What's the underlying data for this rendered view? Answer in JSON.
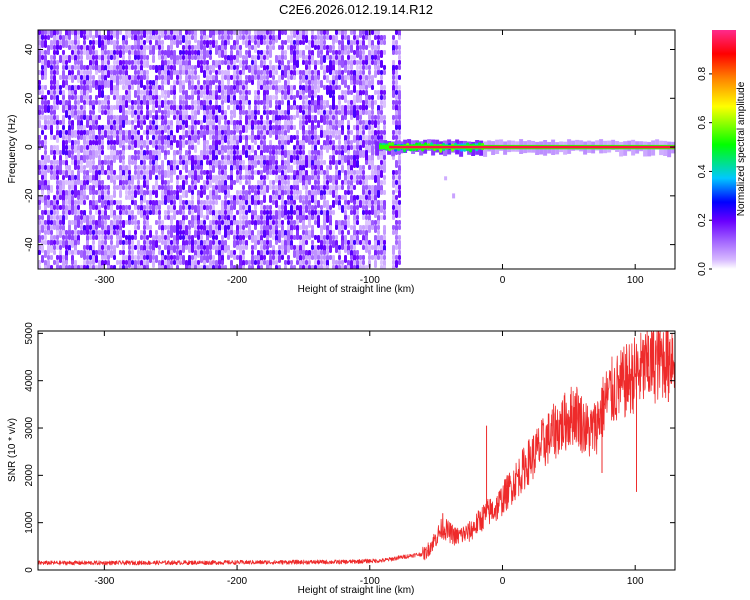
{
  "figure": {
    "title": "C2E6.2026.012.19.14.R12"
  },
  "colors": {
    "snr_line": "#ee2a2a",
    "text": "#000000",
    "frame": "#000000",
    "colormap": [
      "#ffffff",
      "#d6b8ff",
      "#a060ff",
      "#6a00ff",
      "#0000ff",
      "#00c8ff",
      "#00ff00",
      "#ffff00",
      "#ff8000",
      "#ff0000",
      "#ff2a8c"
    ]
  },
  "chart_data": [
    {
      "type": "heatmap",
      "title": "",
      "xlabel": "Height of straight line (km)",
      "ylabel": "Frequency (Hz)",
      "xlim": [
        -350,
        130
      ],
      "ylim": [
        -50,
        48
      ],
      "xticks": [
        -300,
        -200,
        -100,
        0,
        100
      ],
      "yticks": [
        -40,
        -20,
        0,
        20,
        40
      ],
      "xtick_labels": [
        "-300",
        "-200",
        "-100",
        "0",
        "100"
      ],
      "ytick_labels": [
        "-40",
        "-20",
        "0",
        "20",
        "40"
      ],
      "noise_region_x": [
        -350,
        -77
      ],
      "noise_gap_x": -87,
      "noise_level": 0.15,
      "line_start_x": -93,
      "line_frequency": 0,
      "line_amplitude": 1.0,
      "colorbar": {
        "label": "Normalized spectral amplitude",
        "range": [
          0,
          0.98
        ],
        "ticks": [
          0,
          0.2,
          0.4,
          0.6,
          0.8
        ],
        "tick_labels": [
          "0.0",
          "0.2",
          "0.4",
          "0.6",
          "0.8"
        ]
      }
    },
    {
      "type": "line",
      "title": "",
      "xlabel": "Height of straight line (km)",
      "ylabel": "SNR (10 * v/v)",
      "xlim": [
        -350,
        130
      ],
      "ylim": [
        0,
        5050
      ],
      "xticks": [
        -300,
        -200,
        -100,
        0,
        100
      ],
      "yticks": [
        0,
        1000,
        2000,
        3000,
        4000,
        5000
      ],
      "xtick_labels": [
        "-300",
        "-200",
        "-100",
        "0",
        "100"
      ],
      "ytick_labels": [
        "0",
        "1000",
        "2000",
        "3000",
        "4000",
        "5000"
      ],
      "series": [
        {
          "color": "#ee2a2a",
          "x": [
            -350,
            -300,
            -200,
            -120,
            -90,
            -70,
            -58,
            -52,
            -45,
            -40,
            -35,
            -30,
            -25,
            -20,
            -12,
            -5,
            0,
            5,
            10,
            20,
            30,
            40,
            50,
            55,
            60,
            65,
            70,
            75,
            80,
            90,
            100,
            110,
            120,
            130
          ],
          "y": [
            150,
            150,
            160,
            170,
            200,
            300,
            350,
            600,
            900,
            800,
            700,
            750,
            800,
            950,
            1200,
            1300,
            1500,
            1700,
            1900,
            2300,
            2650,
            2950,
            3200,
            3350,
            3100,
            2900,
            3000,
            3400,
            3700,
            3900,
            4150,
            4300,
            4450,
            4600
          ],
          "spikes": [
            {
              "x": -45,
              "y": 1200
            },
            {
              "x": -12,
              "y": 3050
            },
            {
              "x": 70,
              "y": 3450
            },
            {
              "x": 75,
              "y": 2050
            },
            {
              "x": 95,
              "y": 3700
            },
            {
              "x": 101,
              "y": 1650
            },
            {
              "x": 110,
              "y": 4950
            },
            {
              "x": 118,
              "y": 5000
            },
            {
              "x": 125,
              "y": 3550
            }
          ]
        }
      ]
    }
  ]
}
